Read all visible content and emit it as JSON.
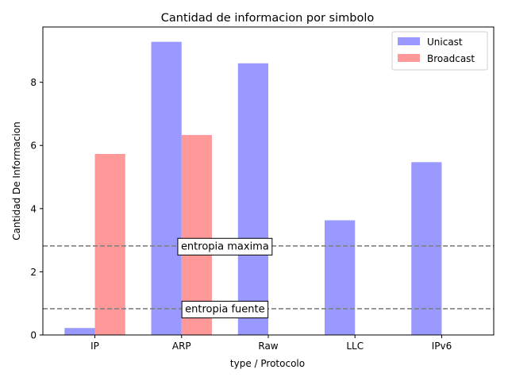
{
  "chart_data": {
    "type": "bar",
    "title": "Cantidad de informacion por simbolo",
    "xlabel": "type / Protocolo",
    "ylabel": "Cantidad De Informacion",
    "categories": [
      "IP",
      "ARP",
      "Raw",
      "LLC",
      "IPv6"
    ],
    "series": [
      {
        "name": "Unicast",
        "values": [
          0.22,
          9.28,
          8.6,
          3.63,
          5.47
        ],
        "color": "#9999ff"
      },
      {
        "name": "Broadcast",
        "values": [
          5.73,
          6.33,
          0,
          0,
          0
        ],
        "color": "#ff9999"
      }
    ],
    "ylim": [
      0,
      9.75
    ],
    "yticks": [
      0,
      2,
      4,
      6,
      8
    ],
    "reference_lines": [
      {
        "label": "entropia maxima",
        "value": 2.82
      },
      {
        "label": "entropia fuente",
        "value": 0.83
      }
    ],
    "grid": false,
    "legend_position": "top-right"
  }
}
